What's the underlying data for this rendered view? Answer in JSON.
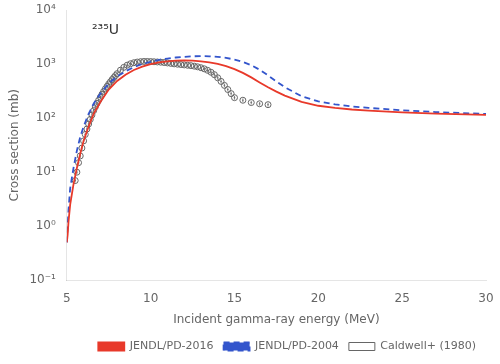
{
  "chart_data": {
    "type": "line",
    "xlabel": "Incident gamma-ray energy (MeV)",
    "ylabel": "Cross section (mb)",
    "annotation": "²³⁵U",
    "log": "y",
    "grid": false,
    "legend": "lower right",
    "xlim": [
      5,
      30
    ],
    "xticks": [
      5,
      10,
      15,
      20,
      25,
      30
    ],
    "ylim": [
      0.1,
      10000
    ],
    "yticks": [
      {
        "value": 0.1,
        "label": "10⁻¹"
      },
      {
        "value": 1,
        "label": "10⁰"
      },
      {
        "value": 10,
        "label": "10¹"
      },
      {
        "value": 100,
        "label": "10²"
      },
      {
        "value": 1000,
        "label": "10³"
      },
      {
        "value": 10000,
        "label": "10⁴"
      }
    ],
    "series": [
      {
        "name": "JENDL/PD-2016",
        "type": "line",
        "color": "#e8392a",
        "line_style": "solid",
        "x": [
          5.0,
          5.05,
          5.1,
          5.2,
          5.4,
          5.6,
          5.8,
          6.0,
          6.3,
          6.6,
          7.0,
          7.5,
          8.0,
          8.5,
          9.0,
          9.5,
          10.0,
          10.5,
          11.0,
          11.5,
          12.0,
          12.5,
          13.0,
          13.5,
          14.0,
          14.5,
          15.0,
          15.5,
          16.0,
          16.5,
          17.0,
          17.5,
          18.0,
          19.0,
          20.0,
          21.0,
          22.0,
          23.0,
          25.0,
          27.0,
          30.0
        ],
        "values": [
          0.5,
          0.7,
          1.2,
          2.5,
          6.0,
          12.0,
          22.0,
          38.0,
          70.0,
          120.0,
          200.0,
          340.0,
          490.0,
          640.0,
          780.0,
          900.0,
          1000.0,
          1080.0,
          1130.0,
          1160.0,
          1170.0,
          1160.0,
          1130.0,
          1080.0,
          1010.0,
          920.0,
          810.0,
          690.0,
          570.0,
          460.0,
          375.0,
          310.0,
          262.0,
          200.0,
          170.0,
          155.0,
          145.0,
          138.0,
          128.0,
          122.0,
          115.0
        ]
      },
      {
        "name": "JENDL/PD-2004",
        "type": "line",
        "color": "#3355cc",
        "line_style": "dashed",
        "x": [
          5.0,
          5.05,
          5.1,
          5.2,
          5.4,
          5.6,
          5.8,
          6.0,
          6.3,
          6.6,
          7.0,
          7.5,
          8.0,
          8.5,
          9.0,
          9.5,
          10.0,
          10.5,
          11.0,
          11.5,
          12.0,
          12.5,
          13.0,
          13.5,
          14.0,
          14.5,
          15.0,
          15.5,
          16.0,
          16.5,
          17.0,
          17.5,
          18.0,
          19.0,
          20.0,
          21.0,
          22.0,
          23.0,
          25.0,
          27.0,
          30.0
        ],
        "values": [
          0.5,
          1.0,
          2.0,
          5.0,
          12.0,
          25.0,
          45.0,
          70.0,
          120.0,
          185.0,
          285.0,
          440.0,
          590.0,
          740.0,
          880.0,
          1010.0,
          1110.0,
          1200.0,
          1270.0,
          1330.0,
          1370.0,
          1400.0,
          1410.0,
          1400.0,
          1370.0,
          1310.0,
          1220.0,
          1100.0,
          960.0,
          790.0,
          620.0,
          480.0,
          375.0,
          255.0,
          205.0,
          180.0,
          165.0,
          155.0,
          140.0,
          130.0,
          120.0
        ]
      },
      {
        "name": "Caldwell+ (1980)",
        "type": "scatter",
        "color": "#666666",
        "marker": "circle",
        "x": [
          5.5,
          5.6,
          5.7,
          5.8,
          5.9,
          6.0,
          6.1,
          6.2,
          6.3,
          6.4,
          6.5,
          6.6,
          6.7,
          6.8,
          6.9,
          7.0,
          7.1,
          7.2,
          7.3,
          7.4,
          7.5,
          7.6,
          7.7,
          7.8,
          7.9,
          8.0,
          8.2,
          8.4,
          8.6,
          8.8,
          9.0,
          9.2,
          9.4,
          9.6,
          9.8,
          10.0,
          10.2,
          10.4,
          10.6,
          10.8,
          11.0,
          11.2,
          11.4,
          11.6,
          11.8,
          12.0,
          12.2,
          12.4,
          12.6,
          12.8,
          13.0,
          13.2,
          13.4,
          13.6,
          13.8,
          14.0,
          14.2,
          14.4,
          14.6,
          14.8,
          15.0,
          15.5,
          16.0,
          16.5,
          17.0
        ],
        "values": [
          7.0,
          10.0,
          15.0,
          20.0,
          28.0,
          38.0,
          50.0,
          63.0,
          78.0,
          95.0,
          115.0,
          138.0,
          162.0,
          188.0,
          215.0,
          245.0,
          278.0,
          313.0,
          350.0,
          388.0,
          430.0,
          472.0,
          518.0,
          565.0,
          615.0,
          668.0,
          775.0,
          875.0,
          960.0,
          1020.0,
          1065.0,
          1095.0,
          1115.0,
          1125.0,
          1125.0,
          1120.0,
          1110.0,
          1100.0,
          1090.0,
          1075.0,
          1055.0,
          1035.0,
          1015.0,
          1000.0,
          985.0,
          970.0,
          955.0,
          940.0,
          920.0,
          895.0,
          860.0,
          820.0,
          770.0,
          710.0,
          640.0,
          560.0,
          480.0,
          405.0,
          340.0,
          285.0,
          240.0,
          215.0,
          195.0,
          185.0,
          178.0
        ],
        "y_err": [
          0.56,
          0.8,
          1.2,
          1.6,
          2.24,
          3.04,
          4,
          5.04,
          6.24,
          7.6,
          9.2,
          11.04,
          12.96,
          15.04,
          17.2,
          19.6,
          22.24,
          25.04,
          28,
          31.04,
          34.4,
          37.76,
          41.44,
          45.2,
          49.2,
          53.44,
          62,
          70,
          76.8,
          81.6,
          85.2,
          87.6,
          89.2,
          90,
          90,
          89.6,
          88.8,
          88,
          87.2,
          86,
          84.4,
          82.8,
          81.2,
          80,
          78.8,
          77.6,
          76.4,
          75.2,
          73.6,
          71.6,
          68.8,
          65.6,
          61.6,
          56.8,
          51.2,
          44.8,
          38.4,
          32.4,
          27.2,
          22.8,
          19.2,
          17.2,
          15.6,
          14.8,
          14.24
        ],
        "x_err": 0.05
      }
    ]
  }
}
